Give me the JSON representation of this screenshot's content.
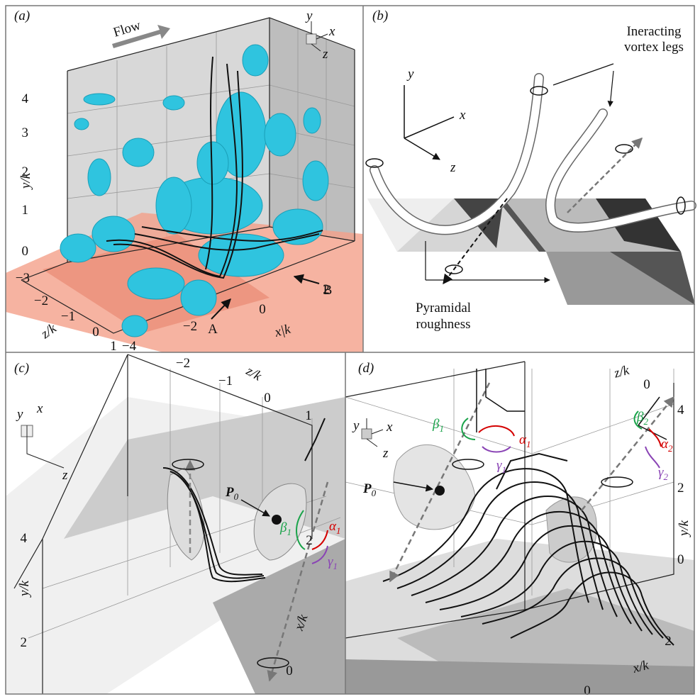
{
  "panels": {
    "a": {
      "label": "(a)",
      "flow": "Flow",
      "triad": {
        "y": "y",
        "x": "x",
        "z": "z"
      },
      "y_axis": {
        "title": "y/k",
        "ticks": [
          "4",
          "3",
          "2",
          "1",
          "0"
        ]
      },
      "z_axis": {
        "title": "z/k",
        "ticks": [
          "−3",
          "−2",
          "−1",
          "0",
          "1"
        ]
      },
      "x_axis": {
        "title": "x|k",
        "ticks": [
          "−4",
          "−2",
          "0",
          "2"
        ]
      },
      "markers": [
        "A",
        "B"
      ]
    },
    "b": {
      "label": "(b)",
      "triad": {
        "y": "y",
        "x": "x",
        "z": "z"
      },
      "legs_note": [
        "Ineracting",
        "vortex legs"
      ],
      "roughness_note": [
        "Pyramidal",
        "roughness"
      ]
    },
    "c": {
      "label": "(c)",
      "triad": {
        "y": "y",
        "x": "x",
        "z": "z"
      },
      "z_axis": {
        "title": "z/k",
        "ticks": [
          "−2",
          "−1",
          "0",
          "1"
        ]
      },
      "y_axis": {
        "title": "y/k",
        "ticks": [
          "4",
          "2"
        ]
      },
      "x_axis": {
        "title": "x/k",
        "ticks": [
          "2",
          "0"
        ]
      },
      "angles": [
        {
          "symbol": "β",
          "sub": "1"
        },
        {
          "symbol": "α",
          "sub": "1"
        },
        {
          "symbol": "γ",
          "sub": "1"
        }
      ],
      "point": {
        "symbol": "P",
        "sub": "0"
      }
    },
    "d": {
      "label": "(d)",
      "triad": {
        "y": "y",
        "x": "x",
        "z": "z"
      },
      "z_axis": {
        "title": "z/k",
        "ticks": [
          "0"
        ]
      },
      "y_axis": {
        "title": "y/k",
        "ticks": [
          "4",
          "2",
          "0"
        ]
      },
      "x_axis": {
        "title": "x/k",
        "ticks": [
          "2",
          "0"
        ]
      },
      "angles": [
        {
          "symbol": "β",
          "sub": "1"
        },
        {
          "symbol": "α",
          "sub": "1"
        },
        {
          "symbol": "γ",
          "sub": "1"
        },
        {
          "symbol": "β",
          "sub": "2"
        },
        {
          "symbol": "α",
          "sub": "2"
        },
        {
          "symbol": "γ",
          "sub": "2"
        }
      ],
      "point": {
        "symbol": "P",
        "sub": "0"
      }
    }
  }
}
